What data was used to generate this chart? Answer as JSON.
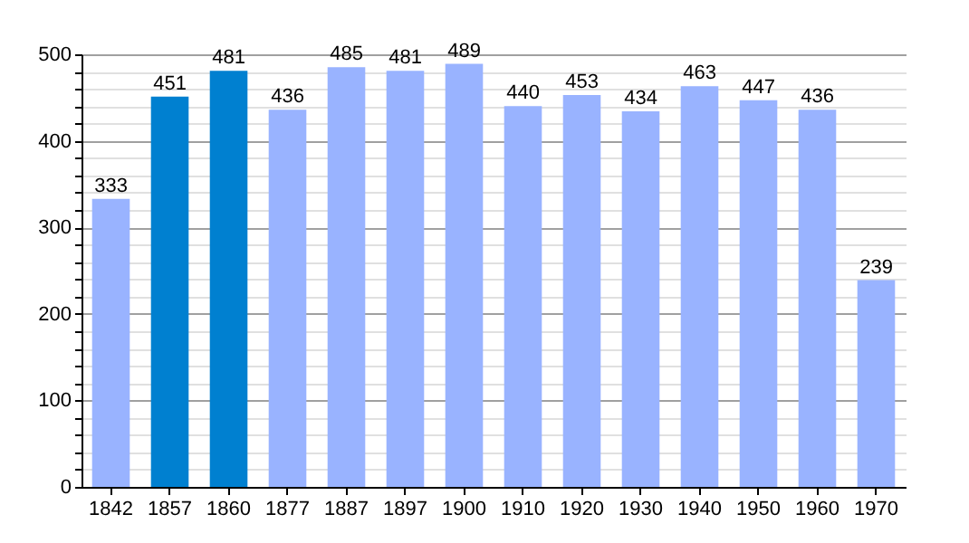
{
  "chart_data": {
    "type": "bar",
    "categories": [
      "1842",
      "1857",
      "1860",
      "1877",
      "1887",
      "1897",
      "1900",
      "1910",
      "1920",
      "1930",
      "1940",
      "1950",
      "1960",
      "1970"
    ],
    "values": [
      333,
      451,
      481,
      436,
      485,
      481,
      489,
      440,
      453,
      434,
      463,
      447,
      436,
      239
    ],
    "colors": [
      "#99b3ff",
      "#0080d0",
      "#0080d0",
      "#99b3ff",
      "#99b3ff",
      "#99b3ff",
      "#99b3ff",
      "#99b3ff",
      "#99b3ff",
      "#99b3ff",
      "#99b3ff",
      "#99b3ff",
      "#99b3ff",
      "#99b3ff"
    ],
    "ylim": [
      0,
      500
    ],
    "yticks": [
      0,
      {
        "value": 20,
        "label": null
      },
      {
        "value": 40,
        "label": null
      },
      {
        "value": 60,
        "label": null
      },
      {
        "value": 80,
        "label": null
      },
      100,
      {
        "value": 120,
        "label": null
      },
      {
        "value": 140,
        "label": null
      },
      {
        "value": 160,
        "label": null
      },
      {
        "value": 180,
        "label": null
      },
      200,
      {
        "value": 220,
        "label": null
      },
      {
        "value": 240,
        "label": null
      },
      {
        "value": 260,
        "label": null
      },
      {
        "value": 280,
        "label": null
      },
      300,
      {
        "value": 320,
        "label": null
      },
      {
        "value": 340,
        "label": null
      },
      {
        "value": 360,
        "label": null
      },
      {
        "value": 380,
        "label": null
      },
      400,
      {
        "value": 420,
        "label": null
      },
      {
        "value": 440,
        "label": null
      },
      {
        "value": 460,
        "label": null
      },
      {
        "value": 480,
        "label": null
      },
      500
    ],
    "grid": "y",
    "data_labels": true
  }
}
